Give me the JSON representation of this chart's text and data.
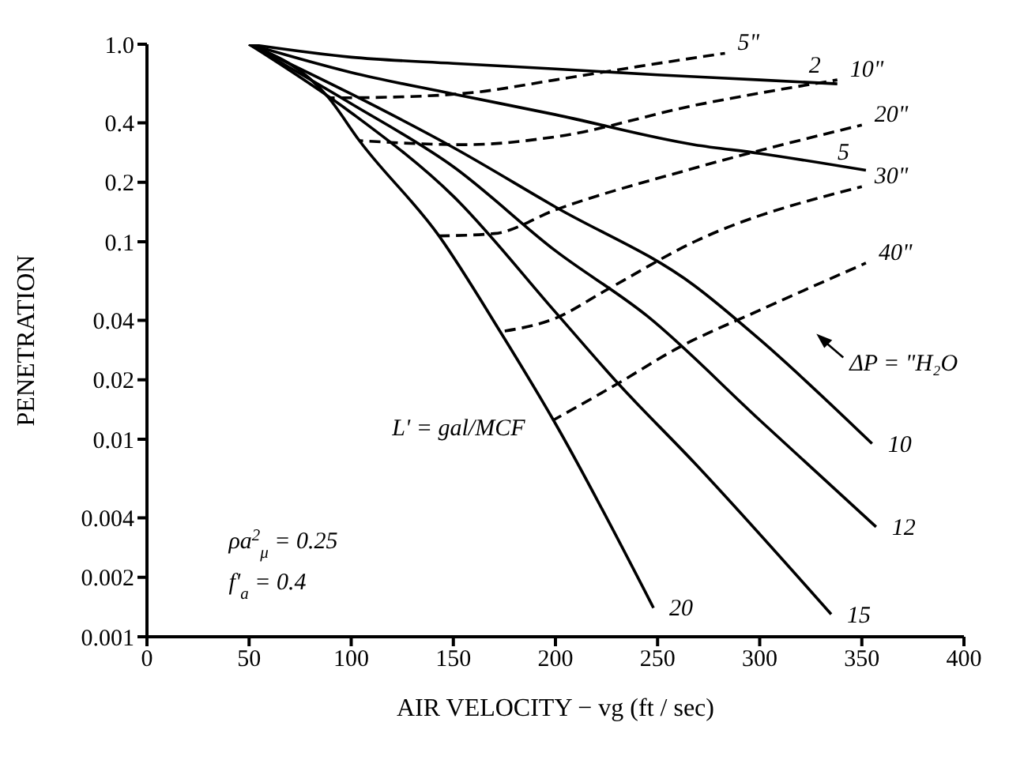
{
  "chart_data": {
    "type": "line",
    "xlabel": "AIR VELOCITY − vg (ft / sec)",
    "ylabel": "PENETRATION",
    "log": "y",
    "xlim": [
      0,
      400
    ],
    "xticks": [
      0,
      50,
      100,
      150,
      200,
      250,
      300,
      350,
      400
    ],
    "ylim": [
      0.001,
      1
    ],
    "yticks": [
      0.001,
      0.002,
      0.004,
      0.01,
      0.02,
      0.04,
      0.1,
      0.2,
      0.4,
      {
        "value": 1,
        "label": "1.0"
      }
    ],
    "marker": "none",
    "series": [
      {
        "name": "2",
        "color": "#000000",
        "line_style": "solid",
        "x": [
          50,
          100,
          150,
          200,
          250,
          300,
          338
        ],
        "values": [
          1,
          0.86,
          0.8,
          0.75,
          0.7,
          0.66,
          0.63
        ]
      },
      {
        "name": "5",
        "color": "#000000",
        "line_style": "solid",
        "x": [
          50,
          100,
          150,
          200,
          268,
          300,
          352
        ],
        "values": [
          1,
          0.72,
          0.56,
          0.44,
          0.31,
          0.28,
          0.23
        ]
      },
      {
        "name": "10",
        "color": "#000000",
        "line_style": "solid",
        "x": [
          50,
          100,
          150,
          200,
          268,
          300,
          355
        ],
        "values": [
          1,
          0.56,
          0.3,
          0.15,
          0.06,
          0.032,
          0.0095
        ]
      },
      {
        "name": "12",
        "color": "#000000",
        "line_style": "solid",
        "x": [
          50,
          100,
          150,
          200,
          245,
          300,
          357
        ],
        "values": [
          1,
          0.5,
          0.24,
          0.09,
          0.042,
          0.0125,
          0.0036
        ]
      },
      {
        "name": "15",
        "color": "#000000",
        "line_style": "solid",
        "x": [
          50,
          100,
          150,
          200,
          231,
          268,
          335
        ],
        "values": [
          1,
          0.45,
          0.17,
          0.044,
          0.019,
          0.0076,
          0.0013
        ]
      },
      {
        "name": "20",
        "color": "#000000",
        "line_style": "solid",
        "x": [
          50,
          89,
          104,
          143,
          173,
          199,
          248
        ],
        "values": [
          1,
          0.535,
          0.325,
          0.107,
          0.035,
          0.0125,
          0.0014
        ]
      },
      {
        "name": "5\"",
        "color": "#000000",
        "line_style": "dashed",
        "x": [
          89,
          120,
          160,
          200,
          240,
          283
        ],
        "values": [
          0.535,
          0.54,
          0.57,
          0.66,
          0.77,
          0.9
        ]
      },
      {
        "name": "10\"",
        "color": "#000000",
        "line_style": "dashed",
        "x": [
          104,
          156,
          200,
          268,
          338
        ],
        "values": [
          0.325,
          0.31,
          0.34,
          0.49,
          0.66
        ]
      },
      {
        "name": "20\"",
        "color": "#000000",
        "line_style": "dashed",
        "x": [
          143,
          170,
          200,
          268,
          350
        ],
        "values": [
          0.107,
          0.11,
          0.145,
          0.236,
          0.39
        ]
      },
      {
        "name": "30\"",
        "color": "#000000",
        "line_style": "dashed",
        "x": [
          173,
          200,
          225,
          268,
          350
        ],
        "values": [
          0.035,
          0.041,
          0.057,
          0.1,
          0.19
        ]
      },
      {
        "name": "40\"",
        "color": "#000000",
        "line_style": "dashed",
        "x": [
          199,
          230,
          260,
          300,
          352
        ],
        "values": [
          0.0125,
          0.019,
          0.029,
          0.045,
          0.078
        ]
      }
    ],
    "annotations": [
      "L' = gal/MCF",
      "ΔP = \"H₂O",
      "ρa$^{2}$$_{μ}$ = 0.25",
      "f'$_{a}$ = 0.4"
    ]
  }
}
